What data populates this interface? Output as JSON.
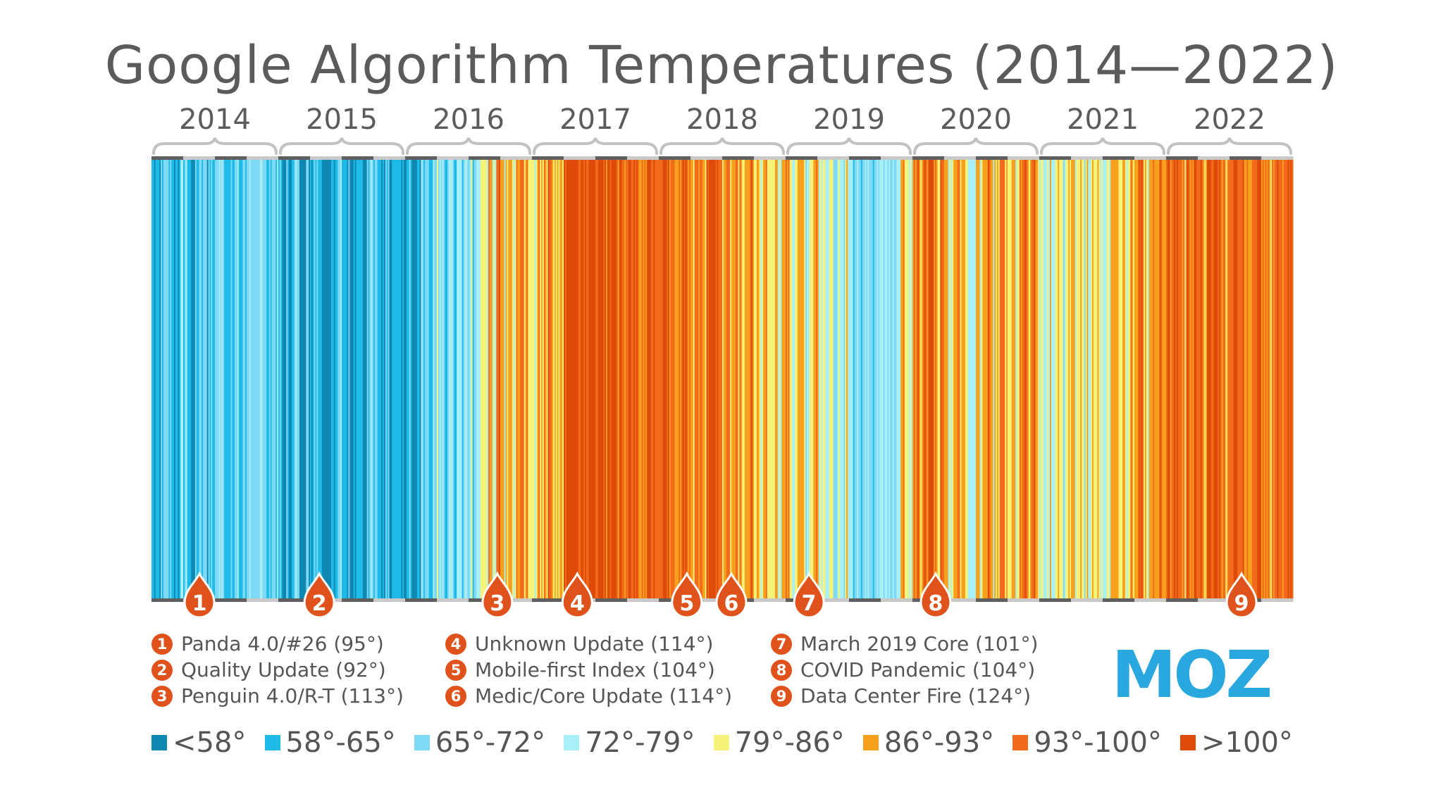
{
  "chart_data": {
    "type": "heatmap",
    "title": "Google Algorithm Temperatures (2014—2022)",
    "years": [
      "2014",
      "2015",
      "2016",
      "2017",
      "2018",
      "2019",
      "2020",
      "2021",
      "2022"
    ],
    "bins": [
      {
        "label": "<58°",
        "color": "#0e87b3"
      },
      {
        "label": "58°-65°",
        "color": "#1ebbe8"
      },
      {
        "label": "65°-72°",
        "color": "#7ed9f5"
      },
      {
        "label": "72°-79°",
        "color": "#a8f0f5"
      },
      {
        "label": "79°-86°",
        "color": "#f6f27a"
      },
      {
        "label": "86°-93°",
        "color": "#f6a01c"
      },
      {
        "label": "93°-100°",
        "color": "#f26a1b"
      },
      {
        "label": ">100°",
        "color": "#de4a08"
      }
    ],
    "year_profiles": [
      [
        1,
        1,
        1,
        2,
        2,
        1,
        1,
        2,
        2,
        1,
        0,
        1,
        2,
        2,
        1,
        1,
        2,
        3,
        2,
        1,
        1,
        2,
        1,
        2,
        2,
        1,
        2,
        3,
        2,
        1,
        2,
        2
      ],
      [
        1,
        0,
        1,
        1,
        2,
        1,
        0,
        1,
        1,
        2,
        1,
        0,
        0,
        1,
        1,
        2,
        1,
        1,
        0,
        1,
        1,
        0,
        1,
        2,
        1,
        1,
        0,
        1,
        0,
        1,
        1,
        0
      ],
      [
        1,
        1,
        0,
        1,
        2,
        2,
        1,
        2,
        3,
        2,
        2,
        3,
        2,
        3,
        2,
        3,
        3,
        2,
        3,
        4,
        3,
        5,
        4,
        6,
        5,
        4,
        5,
        4,
        5,
        6,
        5,
        4
      ],
      [
        4,
        5,
        4,
        5,
        6,
        5,
        4,
        5,
        7,
        7,
        7,
        7,
        7,
        7,
        7,
        7,
        7,
        7,
        6,
        7,
        7,
        6,
        7,
        6,
        7,
        6,
        7,
        6,
        6,
        7,
        6,
        6
      ],
      [
        6,
        7,
        6,
        6,
        5,
        6,
        7,
        6,
        5,
        6,
        6,
        5,
        6,
        7,
        6,
        6,
        5,
        6,
        5,
        6,
        5,
        4,
        5,
        6,
        5,
        4,
        5,
        5,
        4,
        5,
        4,
        5
      ],
      [
        5,
        4,
        4,
        5,
        4,
        3,
        4,
        5,
        4,
        3,
        3,
        4,
        2,
        3,
        3,
        4,
        3,
        2,
        3,
        2,
        3,
        3,
        2,
        3,
        2,
        3,
        2,
        3,
        3,
        5,
        4,
        3
      ],
      [
        5,
        6,
        5,
        6,
        7,
        6,
        5,
        6,
        5,
        4,
        5,
        6,
        5,
        4,
        3,
        4,
        5,
        4,
        5,
        6,
        4,
        5,
        6,
        5,
        4,
        5,
        4,
        5,
        6,
        5,
        6,
        5
      ],
      [
        4,
        3,
        4,
        3,
        4,
        4,
        3,
        4,
        5,
        4,
        4,
        3,
        4,
        5,
        4,
        4,
        3,
        4,
        5,
        5,
        4,
        5,
        4,
        5,
        5,
        6,
        5,
        4,
        5,
        5,
        6,
        5
      ],
      [
        6,
        6,
        7,
        6,
        5,
        6,
        6,
        7,
        6,
        5,
        6,
        6,
        7,
        6,
        6,
        5,
        6,
        7,
        6,
        6,
        5,
        6,
        6,
        7,
        6,
        6,
        5,
        6,
        6,
        5,
        6,
        6
      ]
    ],
    "events": [
      {
        "num": "1",
        "label": "Panda 4.0/#26 (95°)",
        "position": 0.042
      },
      {
        "num": "2",
        "label": "Quality Update (92°)",
        "position": 0.147
      },
      {
        "num": "3",
        "label": "Penguin 4.0/R-T (113°)",
        "position": 0.303
      },
      {
        "num": "4",
        "label": "Unknown Update (114°)",
        "position": 0.373
      },
      {
        "num": "5",
        "label": "Mobile-first Index (104°)",
        "position": 0.469
      },
      {
        "num": "6",
        "label": "Medic/Core Update (114°)",
        "position": 0.508
      },
      {
        "num": "7",
        "label": "March 2019 Core (101°)",
        "position": 0.576
      },
      {
        "num": "8",
        "label": "COVID Pandemic (104°)",
        "position": 0.687
      },
      {
        "num": "9",
        "label": "Data Center Fire (124°)",
        "position": 0.955
      }
    ]
  },
  "brand": {
    "logo_text": "MOZ",
    "logo_color": "#29a8e0",
    "marker_color": "#e0521b"
  }
}
